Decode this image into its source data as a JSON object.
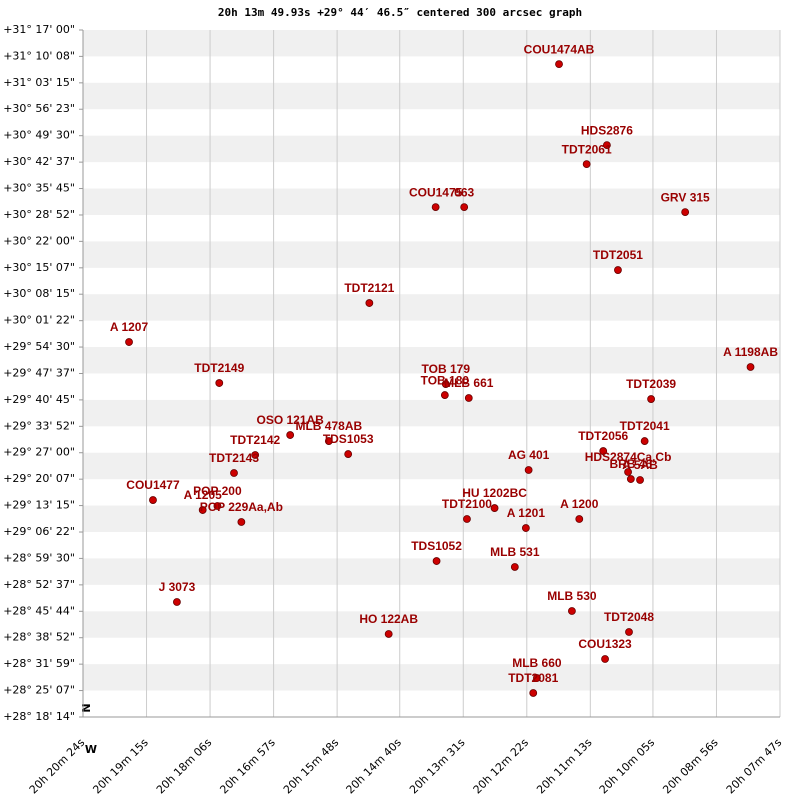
{
  "chart_data": {
    "type": "scatter",
    "title": "20h 13m 49.93s +29° 44′ 46.5″ centered 300 arcsec graph",
    "north_label": "N",
    "west_label": "W",
    "xlim": [
      1224,
      467
    ],
    "xticks": [
      {
        "value": 1224,
        "label": "20h 20m 24s"
      },
      {
        "value": 1155,
        "label": "20h 19m 15s"
      },
      {
        "value": 1086,
        "label": "20h 18m 06s"
      },
      {
        "value": 1017,
        "label": "20h 16m 57s"
      },
      {
        "value": 948,
        "label": "20h 15m 48s"
      },
      {
        "value": 880,
        "label": "20h 14m 40s"
      },
      {
        "value": 811,
        "label": "20h 13m 31s"
      },
      {
        "value": 742,
        "label": "20h 12m 22s"
      },
      {
        "value": 673,
        "label": "20h 11m 13s"
      },
      {
        "value": 605,
        "label": "20h 10m 05s"
      },
      {
        "value": 536,
        "label": "20h 08m 56s"
      },
      {
        "value": 467,
        "label": "20h 07m 47s"
      }
    ],
    "ylim": [
      1094,
      11820
    ],
    "yticks": [
      {
        "value": 11820,
        "label": "+31° 17' 00\""
      },
      {
        "value": 11408,
        "label": "+31° 10' 08\""
      },
      {
        "value": 10995,
        "label": "+31° 03' 15\""
      },
      {
        "value": 10583,
        "label": "+30° 56' 23\""
      },
      {
        "value": 10170,
        "label": "+30° 49' 30\""
      },
      {
        "value": 9757,
        "label": "+30° 42' 37\""
      },
      {
        "value": 9345,
        "label": "+30° 35' 45\""
      },
      {
        "value": 8932,
        "label": "+30° 28' 52\""
      },
      {
        "value": 8520,
        "label": "+30° 22' 00\""
      },
      {
        "value": 8107,
        "label": "+30° 15' 07\""
      },
      {
        "value": 7695,
        "label": "+30° 08' 15\""
      },
      {
        "value": 7282,
        "label": "+30° 01' 22\""
      },
      {
        "value": 6870,
        "label": "+29° 54' 30\""
      },
      {
        "value": 6457,
        "label": "+29° 47' 37\""
      },
      {
        "value": 6045,
        "label": "+29° 40' 45\""
      },
      {
        "value": 5632,
        "label": "+29° 33' 52\""
      },
      {
        "value": 5220,
        "label": "+29° 27' 00\""
      },
      {
        "value": 4807,
        "label": "+29° 20' 07\""
      },
      {
        "value": 4395,
        "label": "+29° 13' 15\""
      },
      {
        "value": 3982,
        "label": "+29° 06' 22\""
      },
      {
        "value": 3570,
        "label": "+28° 59' 30\""
      },
      {
        "value": 3157,
        "label": "+28° 52' 37\""
      },
      {
        "value": 2744,
        "label": "+28° 45' 44\""
      },
      {
        "value": 2332,
        "label": "+28° 38' 52\""
      },
      {
        "value": 1919,
        "label": "+28° 31' 59\""
      },
      {
        "value": 1507,
        "label": "+28° 25' 07\""
      },
      {
        "value": 1094,
        "label": "+28° 18' 14\""
      }
    ],
    "grid": true,
    "color": "#cc0000",
    "label_color": "#990000",
    "point_labels": [
      "COU1474AB",
      "HDS2876",
      "TDT2061",
      "COU1475",
      "063",
      "GRV 315",
      "TDT2051",
      "TDT2121",
      "A  1207",
      "A  1198AB",
      "TDT2149",
      "TOB 179",
      "TOB 180",
      "MLB 661",
      "TDT2039",
      "OSO 121AB",
      "MLB 478AB",
      "TDS1053",
      "TDT2142",
      "TDT2041",
      "TDT2056",
      "AG  401",
      "TDT2143",
      "HDS2874Ca,Cb",
      "BRB 46",
      "A 5AB",
      "COU1477",
      "A  1205",
      "POP 200",
      "POP 229Aa,Ab",
      "HU 1202BC",
      "TDT2100",
      "A  1201",
      "A  1200",
      "TDS1052",
      "MLB 531",
      "J  3073",
      "MLB 530",
      "TDT2048",
      "HO  122AB",
      "COU1323",
      "MLB 660",
      "TDT2081"
    ],
    "x": [
      707,
      655,
      677,
      841,
      810,
      570,
      643,
      913,
      1174,
      499,
      1076,
      830,
      831,
      805,
      607,
      999,
      957,
      936,
      1037,
      614,
      659,
      740,
      1060,
      632,
      629,
      619,
      1148,
      1094,
      1078,
      1052,
      777,
      807,
      743,
      685,
      840,
      755,
      1122,
      693,
      631,
      892,
      657,
      731,
      735
    ],
    "values": [
      11287,
      10023,
      9726,
      9055,
      9055,
      8977,
      8072,
      7557,
      6948,
      6558,
      6308,
      6292,
      6120,
      6074,
      6058,
      5496,
      5402,
      5199,
      5184,
      5402,
      5246,
      4950,
      4903,
      4919,
      4809,
      4794,
      4481,
      4325,
      4388,
      4138,
      4356,
      4185,
      4044,
      4185,
      3529,
      3436,
      2889,
      2749,
      2421,
      2390,
      1999,
      1703,
      1469
    ]
  }
}
